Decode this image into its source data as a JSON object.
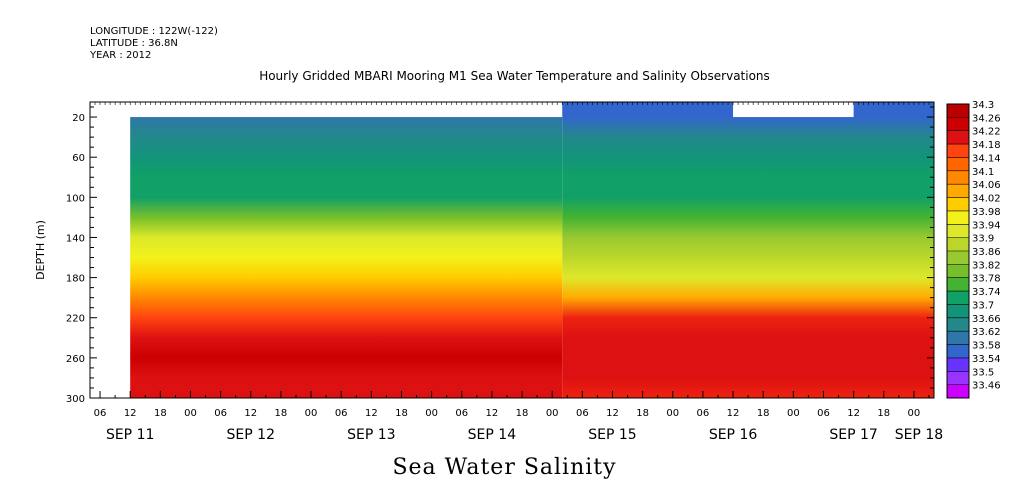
{
  "header": {
    "longitude": "LONGITUDE : 122W(-122)",
    "latitude": "LATITUDE : 36.8N",
    "year": "YEAR : 2012"
  },
  "caption": "Sea Water Salinity",
  "colors": {
    "missing": "#ffffff",
    "scale": [
      "#cc00ff",
      "#9933ff",
      "#6633ff",
      "#4444ee",
      "#3366cc",
      "#2f77aa",
      "#22888a",
      "#12947a",
      "#11a066",
      "#22aa44",
      "#44b332",
      "#77bf2a",
      "#99c930",
      "#bbd62a",
      "#dde82a",
      "#f2f21a",
      "#ffe600",
      "#ffcc00",
      "#ffaa00",
      "#ff8800",
      "#ff6600",
      "#ff4411",
      "#ee2211",
      "#dd1111",
      "#cc0000",
      "#bb0000"
    ]
  },
  "chart_data": {
    "type": "heatmap",
    "title": "Hourly Gridded MBARI Mooring M1 Sea Water Temperature and Salinity Observations",
    "ylabel": "DEPTH (m)",
    "xlabel": "",
    "ylim": [
      300,
      5
    ],
    "xlim_hours_from_sep11_00": [
      4,
      172
    ],
    "y_ticks": [
      20,
      60,
      100,
      140,
      180,
      220,
      260,
      300
    ],
    "x_hour_ticks": [
      "06",
      "12",
      "18",
      "00",
      "06",
      "12",
      "18",
      "00",
      "06",
      "12",
      "18",
      "00",
      "06",
      "12",
      "18",
      "00",
      "06",
      "12",
      "18",
      "00",
      "06",
      "12",
      "18",
      "00",
      "06",
      "12",
      "18",
      "00"
    ],
    "x_day_labels": [
      "SEP 11",
      "SEP 12",
      "SEP 13",
      "SEP 14",
      "SEP 15",
      "SEP 16",
      "SEP 17",
      "SEP 18"
    ],
    "legend_levels": [
      34.3,
      34.26,
      34.22,
      34.18,
      34.14,
      34.1,
      34.06,
      34.02,
      33.98,
      33.94,
      33.9,
      33.86,
      33.82,
      33.78,
      33.74,
      33.7,
      33.66,
      33.62,
      33.58,
      33.54,
      33.5,
      33.46
    ],
    "legend_placement": "right",
    "data_starts": "SEP 11 12:00",
    "profile": {
      "depth": [
        20,
        40,
        60,
        80,
        100,
        120,
        140,
        160,
        180,
        200,
        220,
        240,
        260,
        280,
        300
      ],
      "salinity_sep11_14": [
        33.62,
        33.66,
        33.7,
        33.72,
        33.74,
        33.84,
        33.92,
        33.98,
        34.02,
        34.1,
        34.18,
        34.24,
        34.28,
        34.24,
        34.22
      ],
      "salinity_sep15_18": [
        33.58,
        33.66,
        33.68,
        33.72,
        33.74,
        33.8,
        33.86,
        33.9,
        33.94,
        34.06,
        34.2,
        34.24,
        34.24,
        34.22,
        34.2
      ]
    }
  }
}
